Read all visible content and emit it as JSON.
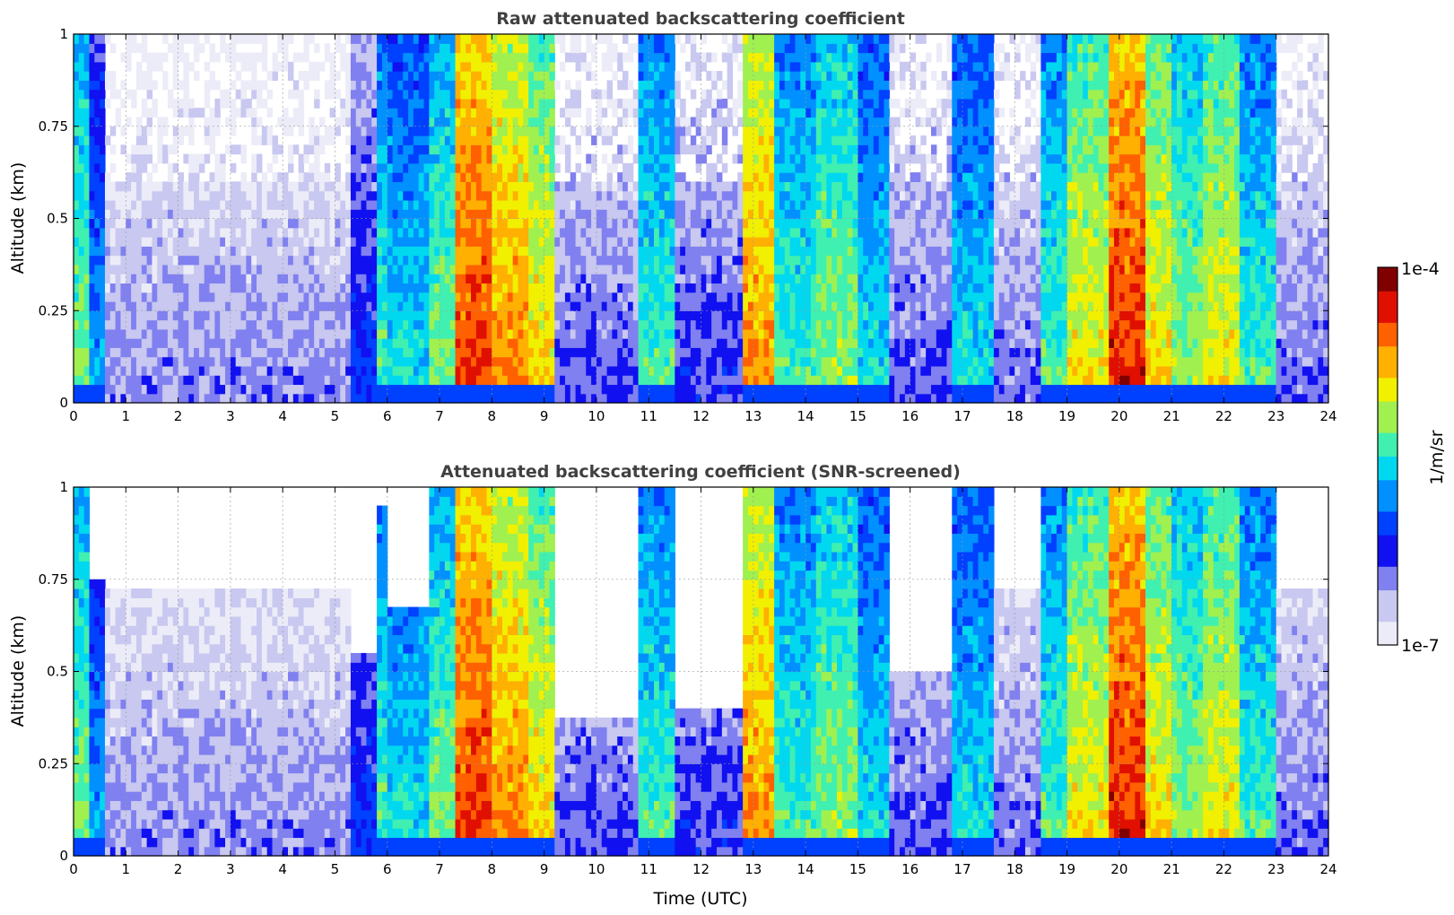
{
  "chart_data": [
    {
      "type": "heatmap",
      "title": "Raw attenuated backscattering coefficient",
      "xlabel": "",
      "ylabel": "Altitude (km)",
      "xlim": [
        0,
        24
      ],
      "ylim": [
        0,
        1
      ],
      "xticks": [
        "0",
        "1",
        "2",
        "3",
        "4",
        "5",
        "6",
        "7",
        "8",
        "9",
        "10",
        "11",
        "12",
        "13",
        "14",
        "15",
        "16",
        "17",
        "18",
        "19",
        "20",
        "21",
        "22",
        "23",
        "24"
      ],
      "yticks": [
        "0",
        "0.25",
        "0.5",
        "0.75",
        "1"
      ],
      "grid": true,
      "screened": false
    },
    {
      "type": "heatmap",
      "title": "Attenuated backscattering coefficient (SNR-screened)",
      "xlabel": "Time (UTC)",
      "ylabel": "Altitude (km)",
      "xlim": [
        0,
        24
      ],
      "ylim": [
        0,
        1
      ],
      "xticks": [
        "0",
        "1",
        "2",
        "3",
        "4",
        "5",
        "6",
        "7",
        "8",
        "9",
        "10",
        "11",
        "12",
        "13",
        "14",
        "15",
        "16",
        "17",
        "18",
        "19",
        "20",
        "21",
        "22",
        "23",
        "24"
      ],
      "yticks": [
        "0",
        "0.25",
        "0.5",
        "0.75",
        "1"
      ],
      "grid": true,
      "screened": true
    }
  ],
  "colorbar": {
    "label": "1/m/sr",
    "max_label": "1e-4",
    "min_label": "1e-7",
    "scale": "log",
    "colors": [
      "#ececf8",
      "#c8c8f0",
      "#8080f0",
      "#1010f0",
      "#0040ff",
      "#0090ff",
      "#00d8f0",
      "#40f0b0",
      "#a0f050",
      "#f0f000",
      "#ffb000",
      "#ff6000",
      "#e01000",
      "#800000"
    ]
  },
  "columns": [
    {
      "t0": 0.0,
      "t1": 0.3,
      "level": 0.6,
      "top": 1.0
    },
    {
      "t0": 0.3,
      "t1": 0.6,
      "level": 0.42,
      "top": 0.75
    },
    {
      "t0": 0.6,
      "t1": 5.3,
      "level": 0.18,
      "top": 0.72
    },
    {
      "t0": 5.3,
      "t1": 5.8,
      "level": 0.3,
      "top": 0.55
    },
    {
      "t0": 5.8,
      "t1": 6.0,
      "level": 0.55,
      "top": 0.95
    },
    {
      "t0": 6.0,
      "t1": 6.8,
      "level": 0.5,
      "top": 0.68
    },
    {
      "t0": 6.8,
      "t1": 7.3,
      "level": 0.6,
      "top": 1.0
    },
    {
      "t0": 7.3,
      "t1": 8.0,
      "level": 0.88,
      "top": 1.0
    },
    {
      "t0": 8.0,
      "t1": 8.7,
      "level": 0.8,
      "top": 1.0
    },
    {
      "t0": 8.7,
      "t1": 9.2,
      "level": 0.72,
      "top": 1.0
    },
    {
      "t0": 9.2,
      "t1": 10.8,
      "level": 0.22,
      "top": 0.38
    },
    {
      "t0": 10.8,
      "t1": 11.5,
      "level": 0.55,
      "top": 1.0
    },
    {
      "t0": 11.5,
      "t1": 12.8,
      "level": 0.25,
      "top": 0.4
    },
    {
      "t0": 12.8,
      "t1": 13.4,
      "level": 0.8,
      "top": 1.0
    },
    {
      "t0": 13.4,
      "t1": 14.2,
      "level": 0.55,
      "top": 1.0
    },
    {
      "t0": 14.2,
      "t1": 15.0,
      "level": 0.62,
      "top": 1.0
    },
    {
      "t0": 15.0,
      "t1": 15.6,
      "level": 0.5,
      "top": 1.0
    },
    {
      "t0": 15.6,
      "t1": 16.8,
      "level": 0.22,
      "top": 0.5
    },
    {
      "t0": 16.8,
      "t1": 17.6,
      "level": 0.5,
      "top": 1.0
    },
    {
      "t0": 17.6,
      "t1": 18.5,
      "level": 0.2,
      "top": 0.72
    },
    {
      "t0": 18.5,
      "t1": 19.0,
      "level": 0.55,
      "top": 1.0
    },
    {
      "t0": 19.0,
      "t1": 19.8,
      "level": 0.7,
      "top": 1.0
    },
    {
      "t0": 19.8,
      "t1": 20.5,
      "level": 0.9,
      "top": 1.0
    },
    {
      "t0": 20.5,
      "t1": 21.0,
      "level": 0.72,
      "top": 1.0
    },
    {
      "t0": 21.0,
      "t1": 21.6,
      "level": 0.62,
      "top": 1.0
    },
    {
      "t0": 21.6,
      "t1": 22.3,
      "level": 0.7,
      "top": 1.0
    },
    {
      "t0": 22.3,
      "t1": 23.0,
      "level": 0.55,
      "top": 1.0
    },
    {
      "t0": 23.0,
      "t1": 23.9,
      "level": 0.2,
      "top": 0.72
    }
  ]
}
